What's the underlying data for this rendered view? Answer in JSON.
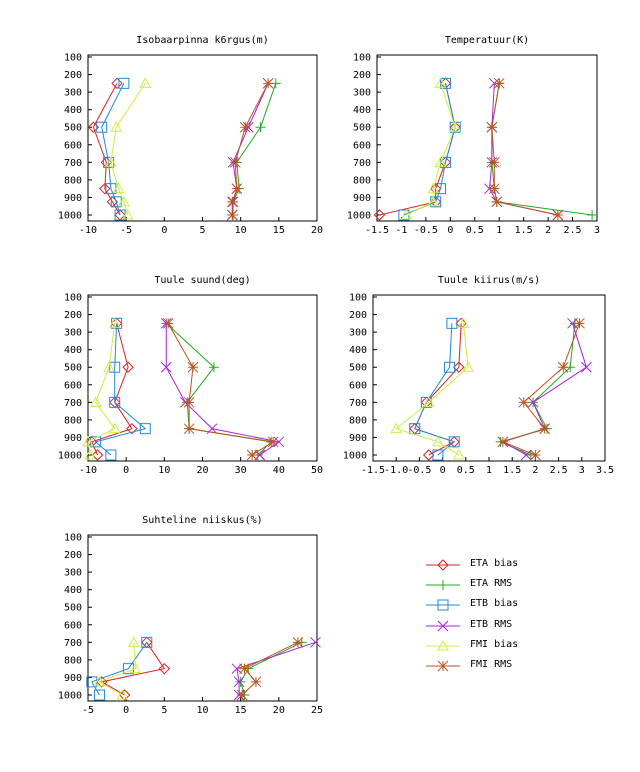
{
  "levels": [
    100,
    200,
    300,
    400,
    500,
    600,
    700,
    800,
    900,
    1000
  ],
  "series_styles": [
    {
      "name": "ETA bias",
      "color": "#dd2222",
      "marker": "diamond"
    },
    {
      "name": "ETA RMS",
      "color": "#22aa22",
      "marker": "plus"
    },
    {
      "name": "ETB bias",
      "color": "#2288dd",
      "marker": "square"
    },
    {
      "name": "ETB RMS",
      "color": "#aa22dd",
      "marker": "cross"
    },
    {
      "name": "FMI bias",
      "color": "#ccee44",
      "marker": "triangle"
    },
    {
      "name": "FMI RMS",
      "color": "#bb5522",
      "marker": "star"
    }
  ],
  "chart_data": [
    {
      "type": "line",
      "title": "Isobaarpinna k6rgus(m)",
      "xlim": [
        -10,
        20
      ],
      "xticks": [
        -10,
        -5,
        0,
        5,
        10,
        15,
        20
      ],
      "ylim": [
        100,
        1000
      ],
      "yticks": [
        100,
        200,
        300,
        400,
        500,
        600,
        700,
        800,
        900,
        1000
      ],
      "y_reversed": true,
      "series": [
        {
          "name": "ETA bias",
          "y": [
            250,
            500,
            700,
            850,
            925,
            1000
          ],
          "x": [
            -6.2,
            -9.3,
            -7.6,
            -7.8,
            -6.8,
            -5.8
          ]
        },
        {
          "name": "ETA RMS",
          "y": [
            250,
            500,
            700,
            850,
            925,
            1000
          ],
          "x": [
            14.6,
            12.6,
            9.5,
            9.8,
            9.0,
            9.0
          ]
        },
        {
          "name": "ETB bias",
          "y": [
            250,
            500,
            700,
            850,
            925,
            1000
          ],
          "x": [
            -5.3,
            -8.2,
            -7.3,
            -7.0,
            -6.3,
            -5.8
          ]
        },
        {
          "name": "ETB RMS",
          "y": [
            250,
            500,
            700,
            850,
            925,
            1000
          ],
          "x": [
            13.6,
            11.0,
            9.0,
            9.5,
            9.0,
            8.9
          ]
        },
        {
          "name": "FMI bias",
          "y": [
            250,
            500,
            700,
            850,
            925,
            1000
          ],
          "x": [
            -2.5,
            -6.3,
            -7.0,
            -6.0,
            -5.3,
            -4.8
          ]
        },
        {
          "name": "FMI RMS",
          "y": [
            250,
            500,
            700,
            850,
            925,
            1000
          ],
          "x": [
            13.6,
            10.6,
            9.3,
            9.5,
            8.9,
            8.9
          ]
        }
      ]
    },
    {
      "type": "line",
      "title": "Temperatuur(K)",
      "xlim": [
        -1.5,
        3
      ],
      "xticks": [
        -1.5,
        -1,
        -0.5,
        0,
        0.5,
        1,
        1.5,
        2,
        2.5,
        3
      ],
      "xtick_labels": [
        "-1.5",
        "-1",
        "-0.5",
        "0",
        "0.5",
        "1",
        "1.5",
        "2",
        "2.5",
        "3"
      ],
      "ylim": [
        100,
        1000
      ],
      "yticks": [
        100,
        200,
        300,
        400,
        500,
        600,
        700,
        800,
        900,
        1000
      ],
      "y_reversed": true,
      "series": [
        {
          "name": "ETA bias",
          "y": [
            250,
            500,
            700,
            850,
            925,
            1000
          ],
          "x": [
            -0.1,
            0.1,
            -0.1,
            -0.3,
            -0.3,
            -1.45
          ]
        },
        {
          "name": "ETA RMS",
          "y": [
            250,
            500,
            700,
            850,
            925,
            1000
          ],
          "x": [
            1.0,
            0.85,
            0.85,
            0.9,
            0.95,
            2.9
          ]
        },
        {
          "name": "ETB bias",
          "y": [
            250,
            500,
            700,
            850,
            925,
            1000
          ],
          "x": [
            -0.1,
            0.1,
            -0.1,
            -0.2,
            -0.3,
            -0.95
          ]
        },
        {
          "name": "ETB RMS",
          "y": [
            250,
            500,
            700,
            850,
            925,
            1000
          ],
          "x": [
            0.9,
            0.85,
            0.85,
            0.8,
            0.95,
            2.2
          ]
        },
        {
          "name": "FMI bias",
          "y": [
            250,
            500,
            700,
            850,
            925,
            1000
          ],
          "x": [
            -0.2,
            0.1,
            -0.2,
            -0.35,
            -0.35,
            -0.9
          ]
        },
        {
          "name": "FMI RMS",
          "y": [
            250,
            500,
            700,
            850,
            925,
            1000
          ],
          "x": [
            1.0,
            0.85,
            0.9,
            0.9,
            0.95,
            2.2
          ]
        }
      ]
    },
    {
      "type": "line",
      "title": "Tuule suund(deg)",
      "xlim": [
        -10,
        50
      ],
      "xticks": [
        -10,
        0,
        10,
        20,
        30,
        40,
        50
      ],
      "ylim": [
        100,
        1000
      ],
      "yticks": [
        100,
        200,
        300,
        400,
        500,
        600,
        700,
        800,
        900,
        1000
      ],
      "y_reversed": true,
      "series": [
        {
          "name": "ETA bias",
          "y": [
            250,
            500,
            700,
            850,
            925,
            1000
          ],
          "x": [
            -2.5,
            0.5,
            -3.0,
            1.5,
            -9.0,
            -7.5
          ]
        },
        {
          "name": "ETA RMS",
          "y": [
            250,
            500,
            700,
            850,
            925,
            1000
          ],
          "x": [
            10.5,
            23.0,
            16.0,
            16.5,
            38.0,
            34.5
          ]
        },
        {
          "name": "ETB bias",
          "y": [
            250,
            500,
            700,
            850,
            925,
            1000
          ],
          "x": [
            -2.5,
            -3.0,
            -3.0,
            5.0,
            -8.0,
            -4.0
          ]
        },
        {
          "name": "ETB RMS",
          "y": [
            250,
            500,
            700,
            850,
            925,
            1000
          ],
          "x": [
            10.5,
            10.5,
            15.5,
            22.5,
            40.0,
            35.0
          ]
        },
        {
          "name": "FMI bias",
          "y": [
            250,
            500,
            700,
            850,
            925,
            1000
          ],
          "x": [
            -3.0,
            -4.5,
            -8.0,
            -3.0,
            -10.0,
            -9.5
          ]
        },
        {
          "name": "FMI RMS",
          "y": [
            250,
            500,
            700,
            850,
            925,
            1000
          ],
          "x": [
            11.0,
            17.5,
            16.5,
            16.5,
            38.5,
            33.0
          ]
        }
      ]
    },
    {
      "type": "line",
      "title": "Tuule kiirus(m/s)",
      "xlim": [
        -1.5,
        3.5
      ],
      "xticks": [
        -1.5,
        -1,
        -0.5,
        0,
        0.5,
        1,
        1.5,
        2,
        2.5,
        3,
        3.5
      ],
      "xtick_labels": [
        "-1.5",
        "-1.0",
        "-0.5",
        "0",
        "0.5",
        "1",
        "1.5",
        "2",
        "2.5",
        "3",
        "3.5"
      ],
      "ylim": [
        100,
        1000
      ],
      "yticks": [
        100,
        200,
        300,
        400,
        500,
        600,
        700,
        800,
        900,
        1000
      ],
      "y_reversed": true,
      "series": [
        {
          "name": "ETA bias",
          "y": [
            250,
            500,
            700,
            850,
            925,
            1000
          ],
          "x": [
            0.4,
            0.35,
            -0.35,
            -0.6,
            0.25,
            -0.3
          ]
        },
        {
          "name": "ETA RMS",
          "y": [
            250,
            500,
            700,
            850,
            925,
            1000
          ],
          "x": [
            2.85,
            2.75,
            1.95,
            2.25,
            1.25,
            1.9
          ]
        },
        {
          "name": "ETB bias",
          "y": [
            250,
            500,
            700,
            850,
            925,
            1000
          ],
          "x": [
            0.2,
            0.15,
            -0.35,
            -0.6,
            0.25,
            -0.1
          ]
        },
        {
          "name": "ETB RMS",
          "y": [
            250,
            500,
            700,
            850,
            925,
            1000
          ],
          "x": [
            2.8,
            3.1,
            1.95,
            2.2,
            1.3,
            1.8
          ]
        },
        {
          "name": "FMI bias",
          "y": [
            250,
            500,
            700,
            850,
            925,
            1000
          ],
          "x": [
            0.45,
            0.55,
            -0.3,
            -1.0,
            -0.1,
            0.35
          ]
        },
        {
          "name": "FMI RMS",
          "y": [
            250,
            500,
            700,
            850,
            925,
            1000
          ],
          "x": [
            2.95,
            2.6,
            1.75,
            2.2,
            1.3,
            2.0
          ]
        }
      ]
    },
    {
      "type": "line",
      "title": "Suhteline niiskus(%)",
      "xlim": [
        -5,
        25
      ],
      "xticks": [
        -5,
        0,
        5,
        10,
        15,
        20,
        25
      ],
      "ylim": [
        100,
        1000
      ],
      "yticks": [
        100,
        200,
        300,
        400,
        500,
        600,
        700,
        800,
        900,
        1000
      ],
      "y_reversed": true,
      "series": [
        {
          "name": "ETA bias",
          "y": [
            700,
            850,
            925,
            1000
          ],
          "x": [
            2.7,
            5.0,
            -3.2,
            -0.2
          ]
        },
        {
          "name": "ETA RMS",
          "y": [
            700,
            850,
            925,
            1000
          ],
          "x": [
            23.0,
            16.0,
            15.0,
            15.5
          ]
        },
        {
          "name": "ETB bias",
          "y": [
            700,
            850,
            925,
            1000
          ],
          "x": [
            2.7,
            0.3,
            -4.5,
            -3.5
          ]
        },
        {
          "name": "ETB RMS",
          "y": [
            700,
            850,
            925,
            1000
          ],
          "x": [
            24.8,
            14.5,
            14.8,
            14.8
          ]
        },
        {
          "name": "FMI bias",
          "y": [
            700,
            850,
            925,
            1000
          ],
          "x": [
            1.0,
            1.2,
            -3.5,
            -0.5
          ]
        },
        {
          "name": "FMI RMS",
          "y": [
            700,
            850,
            925,
            1000
          ],
          "x": [
            22.5,
            15.5,
            17.0,
            15.2
          ]
        }
      ]
    }
  ]
}
